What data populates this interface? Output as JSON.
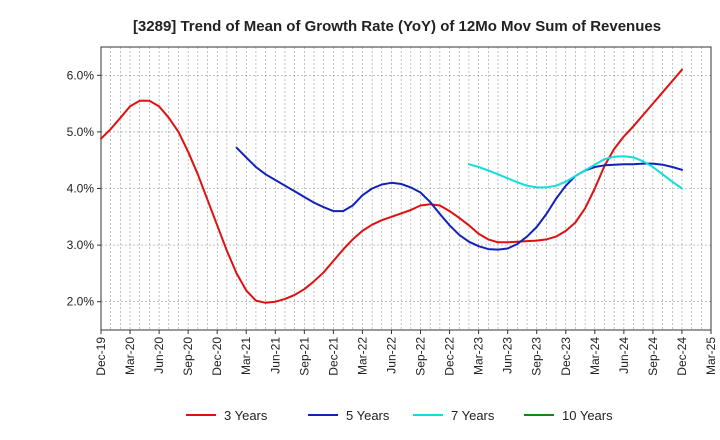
{
  "chart_data": {
    "type": "line",
    "title": "[3289]  Trend of Mean of Growth Rate (YoY) of 12Mo Mov Sum of Revenues",
    "xlabel": "",
    "ylabel": "",
    "x_ticks": [
      "Dec-19",
      "Mar-20",
      "Jun-20",
      "Sep-20",
      "Dec-20",
      "Mar-21",
      "Jun-21",
      "Sep-21",
      "Dec-21",
      "Mar-22",
      "Jun-22",
      "Sep-22",
      "Dec-22",
      "Mar-23",
      "Jun-23",
      "Sep-23",
      "Dec-23",
      "Mar-24",
      "Jun-24",
      "Sep-24",
      "Dec-24",
      "Mar-25"
    ],
    "y_ticks": [
      "2.0%",
      "3.0%",
      "4.0%",
      "5.0%",
      "6.0%"
    ],
    "y_tick_values": [
      2.0,
      3.0,
      4.0,
      5.0,
      6.0
    ],
    "ylim": [
      1.5,
      6.5
    ],
    "x_range_months": [
      0,
      63
    ],
    "grid": true,
    "legend_position": "bottom",
    "series": [
      {
        "name": "3 Years",
        "color": "#dd1111",
        "x": [
          0,
          1,
          2,
          3,
          4,
          5,
          6,
          7,
          8,
          9,
          10,
          11,
          12,
          13,
          14,
          15,
          16,
          17,
          18,
          19,
          20,
          21,
          22,
          23,
          24,
          25,
          26,
          27,
          28,
          29,
          30,
          31,
          32,
          33,
          34,
          35,
          36,
          37,
          38,
          39,
          40,
          41,
          42,
          43,
          44,
          45,
          46,
          47,
          48,
          49,
          50,
          51,
          52,
          53,
          54,
          55,
          56,
          57,
          58,
          59,
          60
        ],
        "values": [
          4.88,
          5.05,
          5.25,
          5.45,
          5.55,
          5.55,
          5.45,
          5.25,
          5.0,
          4.65,
          4.25,
          3.8,
          3.35,
          2.9,
          2.5,
          2.2,
          2.02,
          1.98,
          2.0,
          2.05,
          2.12,
          2.22,
          2.36,
          2.52,
          2.72,
          2.92,
          3.1,
          3.25,
          3.36,
          3.44,
          3.5,
          3.56,
          3.62,
          3.7,
          3.72,
          3.7,
          3.6,
          3.48,
          3.35,
          3.2,
          3.1,
          3.05,
          3.05,
          3.06,
          3.07,
          3.08,
          3.1,
          3.15,
          3.25,
          3.4,
          3.65,
          4.0,
          4.4,
          4.7,
          4.92,
          5.1,
          5.3,
          5.5,
          5.7,
          5.9,
          6.1
        ]
      },
      {
        "name": "5 Years",
        "color": "#1122bb",
        "x": [
          14,
          15,
          16,
          17,
          18,
          19,
          20,
          21,
          22,
          23,
          24,
          25,
          26,
          27,
          28,
          29,
          30,
          31,
          32,
          33,
          34,
          35,
          36,
          37,
          38,
          39,
          40,
          41,
          42,
          43,
          44,
          45,
          46,
          47,
          48,
          49,
          50,
          51,
          52,
          53,
          54,
          55,
          56,
          57,
          58,
          59,
          60
        ],
        "values": [
          4.72,
          4.55,
          4.38,
          4.25,
          4.15,
          4.05,
          3.95,
          3.85,
          3.75,
          3.67,
          3.6,
          3.6,
          3.7,
          3.88,
          4.0,
          4.07,
          4.1,
          4.08,
          4.02,
          3.93,
          3.76,
          3.55,
          3.35,
          3.18,
          3.06,
          2.98,
          2.93,
          2.92,
          2.94,
          3.02,
          3.15,
          3.32,
          3.55,
          3.82,
          4.05,
          4.22,
          4.32,
          4.38,
          4.41,
          4.42,
          4.43,
          4.43,
          4.44,
          4.44,
          4.42,
          4.38,
          4.33
        ]
      },
      {
        "name": "7 Years",
        "color": "#11dddd",
        "x": [
          38,
          39,
          40,
          41,
          42,
          43,
          44,
          45,
          46,
          47,
          48,
          49,
          50,
          51,
          52,
          53,
          54,
          55,
          56,
          57,
          58,
          59,
          60
        ],
        "values": [
          4.43,
          4.38,
          4.32,
          4.25,
          4.18,
          4.11,
          4.05,
          4.02,
          4.02,
          4.05,
          4.12,
          4.22,
          4.32,
          4.42,
          4.52,
          4.56,
          4.57,
          4.55,
          4.48,
          4.38,
          4.25,
          4.12,
          4.0
        ]
      },
      {
        "name": "10 Years",
        "color": "#118811",
        "x": [],
        "values": []
      }
    ]
  }
}
